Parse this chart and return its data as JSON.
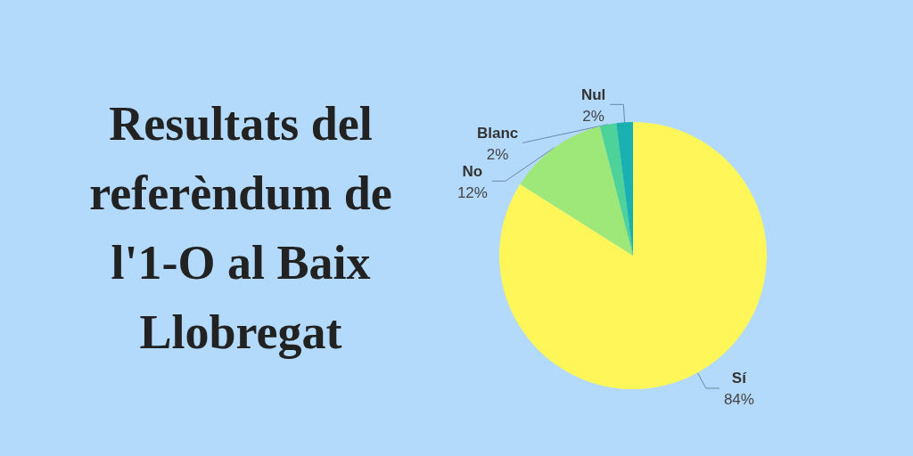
{
  "chart_data": {
    "type": "pie",
    "title": "Resultats del referèndum de l'1-O al Baix Llobregat",
    "categories": [
      "Sí",
      "No",
      "Blanc",
      "Nul"
    ],
    "values": [
      84,
      12,
      2,
      2
    ],
    "colors": [
      "#fff75a",
      "#9ee87a",
      "#4dd39a",
      "#1ab0b0"
    ],
    "value_labels": [
      "84%",
      "12%",
      "2%",
      "2%"
    ],
    "legend": false
  }
}
